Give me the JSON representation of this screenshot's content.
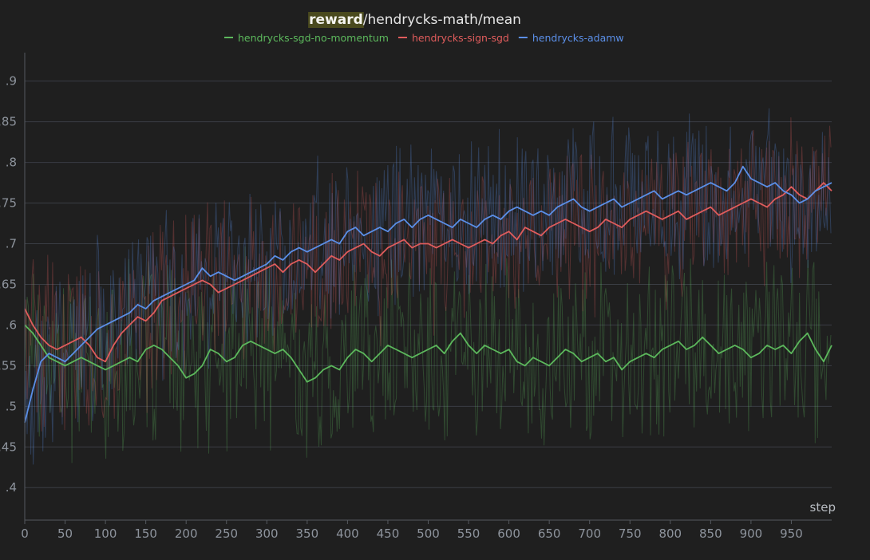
{
  "chart_data": {
    "type": "line",
    "title_highlight": "reward",
    "title_rest": "/hendrycks-math/mean",
    "xlabel": "step",
    "ylabel": "",
    "xlim": [
      0,
      1000
    ],
    "ylim": [
      0.36,
      0.935
    ],
    "x_ticks": [
      0,
      50,
      100,
      150,
      200,
      250,
      300,
      350,
      400,
      450,
      500,
      550,
      600,
      650,
      700,
      750,
      800,
      850,
      900,
      950
    ],
    "y_ticks": [
      0.4,
      0.45,
      0.5,
      0.55,
      0.6,
      0.65,
      0.7,
      0.75,
      0.8,
      0.85,
      0.9
    ],
    "y_tick_labels": [
      ".4",
      ".45",
      ".5",
      ".55",
      ".6",
      ".65",
      ".7",
      ".75",
      ".8",
      ".85",
      ".9"
    ],
    "grid": true,
    "legend_position": "top-center",
    "series": [
      {
        "name": "hendrycks-sgd-no-momentum",
        "color": "#5cb85c",
        "x": [
          0,
          10,
          20,
          30,
          40,
          50,
          60,
          70,
          80,
          90,
          100,
          110,
          120,
          130,
          140,
          150,
          160,
          170,
          180,
          190,
          200,
          210,
          220,
          230,
          240,
          250,
          260,
          270,
          280,
          290,
          300,
          310,
          320,
          330,
          340,
          350,
          360,
          370,
          380,
          390,
          400,
          410,
          420,
          430,
          440,
          450,
          460,
          470,
          480,
          490,
          500,
          510,
          520,
          530,
          540,
          550,
          560,
          570,
          580,
          590,
          600,
          610,
          620,
          630,
          640,
          650,
          660,
          670,
          680,
          690,
          700,
          710,
          720,
          730,
          740,
          750,
          760,
          770,
          780,
          790,
          800,
          810,
          820,
          830,
          840,
          850,
          860,
          870,
          880,
          890,
          900,
          910,
          920,
          930,
          940,
          950,
          960,
          970,
          980,
          990,
          1000
        ],
        "values": [
          0.6,
          0.59,
          0.575,
          0.56,
          0.555,
          0.55,
          0.555,
          0.56,
          0.555,
          0.55,
          0.545,
          0.55,
          0.555,
          0.56,
          0.555,
          0.57,
          0.575,
          0.57,
          0.56,
          0.55,
          0.535,
          0.54,
          0.55,
          0.57,
          0.565,
          0.555,
          0.56,
          0.575,
          0.58,
          0.575,
          0.57,
          0.565,
          0.57,
          0.56,
          0.545,
          0.53,
          0.535,
          0.545,
          0.55,
          0.545,
          0.56,
          0.57,
          0.565,
          0.555,
          0.565,
          0.575,
          0.57,
          0.565,
          0.56,
          0.565,
          0.57,
          0.575,
          0.565,
          0.58,
          0.59,
          0.575,
          0.565,
          0.575,
          0.57,
          0.565,
          0.57,
          0.555,
          0.55,
          0.56,
          0.555,
          0.55,
          0.56,
          0.57,
          0.565,
          0.555,
          0.56,
          0.565,
          0.555,
          0.56,
          0.545,
          0.555,
          0.56,
          0.565,
          0.56,
          0.57,
          0.575,
          0.58,
          0.57,
          0.575,
          0.585,
          0.575,
          0.565,
          0.57,
          0.575,
          0.57,
          0.56,
          0.565,
          0.575,
          0.57,
          0.575,
          0.565,
          0.58,
          0.59,
          0.57,
          0.555,
          0.575
        ]
      },
      {
        "name": "hendrycks-sign-sgd",
        "color": "#e05c5c",
        "x": [
          0,
          10,
          20,
          30,
          40,
          50,
          60,
          70,
          80,
          90,
          100,
          110,
          120,
          130,
          140,
          150,
          160,
          170,
          180,
          190,
          200,
          210,
          220,
          230,
          240,
          250,
          260,
          270,
          280,
          290,
          300,
          310,
          320,
          330,
          340,
          350,
          360,
          370,
          380,
          390,
          400,
          410,
          420,
          430,
          440,
          450,
          460,
          470,
          480,
          490,
          500,
          510,
          520,
          530,
          540,
          550,
          560,
          570,
          580,
          590,
          600,
          610,
          620,
          630,
          640,
          650,
          660,
          670,
          680,
          690,
          700,
          710,
          720,
          730,
          740,
          750,
          760,
          770,
          780,
          790,
          800,
          810,
          820,
          830,
          840,
          850,
          860,
          870,
          880,
          890,
          900,
          910,
          920,
          930,
          940,
          950,
          960,
          970,
          980,
          990,
          1000
        ],
        "values": [
          0.62,
          0.6,
          0.585,
          0.575,
          0.57,
          0.575,
          0.58,
          0.585,
          0.575,
          0.56,
          0.555,
          0.575,
          0.59,
          0.6,
          0.61,
          0.605,
          0.615,
          0.63,
          0.635,
          0.64,
          0.645,
          0.65,
          0.655,
          0.65,
          0.64,
          0.645,
          0.65,
          0.655,
          0.66,
          0.665,
          0.67,
          0.675,
          0.665,
          0.675,
          0.68,
          0.675,
          0.665,
          0.675,
          0.685,
          0.68,
          0.69,
          0.695,
          0.7,
          0.69,
          0.685,
          0.695,
          0.7,
          0.705,
          0.695,
          0.7,
          0.7,
          0.695,
          0.7,
          0.705,
          0.7,
          0.695,
          0.7,
          0.705,
          0.7,
          0.71,
          0.715,
          0.705,
          0.72,
          0.715,
          0.71,
          0.72,
          0.725,
          0.73,
          0.725,
          0.72,
          0.715,
          0.72,
          0.73,
          0.725,
          0.72,
          0.73,
          0.735,
          0.74,
          0.735,
          0.73,
          0.735,
          0.74,
          0.73,
          0.735,
          0.74,
          0.745,
          0.735,
          0.74,
          0.745,
          0.75,
          0.755,
          0.75,
          0.745,
          0.755,
          0.76,
          0.77,
          0.76,
          0.755,
          0.765,
          0.775,
          0.765
        ]
      },
      {
        "name": "hendrycks-adamw",
        "color": "#5b8fe8",
        "x": [
          0,
          10,
          20,
          30,
          40,
          50,
          60,
          70,
          80,
          90,
          100,
          110,
          120,
          130,
          140,
          150,
          160,
          170,
          180,
          190,
          200,
          210,
          220,
          230,
          240,
          250,
          260,
          270,
          280,
          290,
          300,
          310,
          320,
          330,
          340,
          350,
          360,
          370,
          380,
          390,
          400,
          410,
          420,
          430,
          440,
          450,
          460,
          470,
          480,
          490,
          500,
          510,
          520,
          530,
          540,
          550,
          560,
          570,
          580,
          590,
          600,
          610,
          620,
          630,
          640,
          650,
          660,
          670,
          680,
          690,
          700,
          710,
          720,
          730,
          740,
          750,
          760,
          770,
          780,
          790,
          800,
          810,
          820,
          830,
          840,
          850,
          860,
          870,
          880,
          890,
          900,
          910,
          920,
          930,
          940,
          950,
          960,
          970,
          980,
          990,
          1000
        ],
        "values": [
          0.48,
          0.52,
          0.555,
          0.565,
          0.56,
          0.555,
          0.565,
          0.575,
          0.585,
          0.595,
          0.6,
          0.605,
          0.61,
          0.615,
          0.625,
          0.62,
          0.63,
          0.635,
          0.64,
          0.645,
          0.65,
          0.655,
          0.67,
          0.66,
          0.665,
          0.66,
          0.655,
          0.66,
          0.665,
          0.67,
          0.675,
          0.685,
          0.68,
          0.69,
          0.695,
          0.69,
          0.695,
          0.7,
          0.705,
          0.7,
          0.715,
          0.72,
          0.71,
          0.715,
          0.72,
          0.715,
          0.725,
          0.73,
          0.72,
          0.73,
          0.735,
          0.73,
          0.725,
          0.72,
          0.73,
          0.725,
          0.72,
          0.73,
          0.735,
          0.73,
          0.74,
          0.745,
          0.74,
          0.735,
          0.74,
          0.735,
          0.745,
          0.75,
          0.755,
          0.745,
          0.74,
          0.745,
          0.75,
          0.755,
          0.745,
          0.75,
          0.755,
          0.76,
          0.765,
          0.755,
          0.76,
          0.765,
          0.76,
          0.765,
          0.77,
          0.775,
          0.77,
          0.765,
          0.775,
          0.795,
          0.78,
          0.775,
          0.77,
          0.775,
          0.765,
          0.76,
          0.75,
          0.755,
          0.765,
          0.77,
          0.775
        ]
      }
    ]
  }
}
